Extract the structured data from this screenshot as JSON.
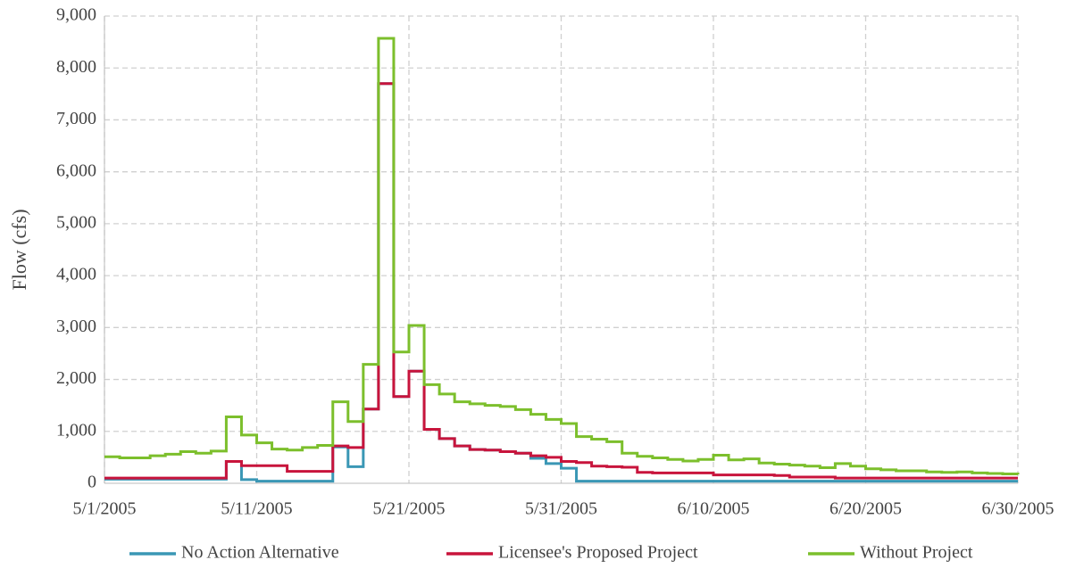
{
  "chart_data": {
    "type": "step",
    "y_label": "Flow (cfs)",
    "x": [
      "5/1/2005",
      "5/2/2005",
      "5/3/2005",
      "5/4/2005",
      "5/5/2005",
      "5/6/2005",
      "5/7/2005",
      "5/8/2005",
      "5/9/2005",
      "5/10/2005",
      "5/11/2005",
      "5/12/2005",
      "5/13/2005",
      "5/14/2005",
      "5/15/2005",
      "5/16/2005",
      "5/17/2005",
      "5/18/2005",
      "5/19/2005",
      "5/20/2005",
      "5/21/2005",
      "5/22/2005",
      "5/23/2005",
      "5/24/2005",
      "5/25/2005",
      "5/26/2005",
      "5/27/2005",
      "5/28/2005",
      "5/29/2005",
      "5/30/2005",
      "5/31/2005",
      "6/1/2005",
      "6/2/2005",
      "6/3/2005",
      "6/4/2005",
      "6/5/2005",
      "6/6/2005",
      "6/7/2005",
      "6/8/2005",
      "6/9/2005",
      "6/10/2005",
      "6/11/2005",
      "6/12/2005",
      "6/13/2005",
      "6/14/2005",
      "6/15/2005",
      "6/16/2005",
      "6/17/2005",
      "6/18/2005",
      "6/19/2005",
      "6/20/2005",
      "6/21/2005",
      "6/22/2005",
      "6/23/2005",
      "6/24/2005",
      "6/25/2005",
      "6/26/2005",
      "6/27/2005",
      "6/28/2005",
      "6/29/2005",
      "6/30/2005"
    ],
    "series": [
      {
        "name": "No Action Alternative",
        "color": "#3a97b5",
        "values": [
          80,
          80,
          80,
          80,
          80,
          80,
          80,
          80,
          420,
          70,
          40,
          40,
          40,
          40,
          40,
          700,
          320,
          1430,
          7700,
          1670,
          2160,
          1040,
          860,
          720,
          650,
          640,
          610,
          580,
          480,
          380,
          290,
          40,
          40,
          40,
          40,
          40,
          40,
          40,
          40,
          40,
          40,
          40,
          40,
          40,
          40,
          40,
          40,
          40,
          40,
          40,
          40,
          40,
          40,
          40,
          40,
          40,
          40,
          40,
          40,
          40,
          40
        ]
      },
      {
        "name": "Licensee's Proposed Project",
        "color": "#c8143c",
        "values": [
          100,
          100,
          100,
          100,
          100,
          100,
          100,
          100,
          420,
          340,
          340,
          340,
          230,
          230,
          230,
          720,
          690,
          1430,
          7700,
          1670,
          2160,
          1040,
          860,
          720,
          650,
          640,
          610,
          580,
          530,
          500,
          420,
          400,
          330,
          320,
          310,
          210,
          200,
          200,
          200,
          200,
          160,
          160,
          160,
          160,
          150,
          120,
          120,
          120,
          100,
          100,
          100,
          100,
          100,
          100,
          100,
          100,
          100,
          100,
          100,
          100,
          100
        ]
      },
      {
        "name": "Without Project",
        "color": "#7cbf2c",
        "values": [
          510,
          490,
          490,
          530,
          560,
          610,
          580,
          620,
          1280,
          930,
          780,
          660,
          640,
          690,
          730,
          1570,
          1190,
          2290,
          8570,
          2530,
          3040,
          1900,
          1720,
          1570,
          1530,
          1500,
          1480,
          1420,
          1330,
          1230,
          1150,
          900,
          850,
          800,
          580,
          520,
          490,
          460,
          430,
          460,
          540,
          450,
          470,
          390,
          370,
          350,
          330,
          300,
          380,
          330,
          280,
          260,
          240,
          240,
          220,
          210,
          220,
          200,
          190,
          180,
          170
        ]
      }
    ],
    "xlim": [
      "5/1/2005",
      "6/30/2005"
    ],
    "xticks": [
      "5/1/2005",
      "5/11/2005",
      "5/21/2005",
      "5/31/2005",
      "6/10/2005",
      "6/20/2005",
      "6/30/2005"
    ],
    "ylim": [
      0,
      9000
    ],
    "yticks": [
      0,
      {
        "value": 1000,
        "label": "1,000"
      },
      {
        "value": 2000,
        "label": "2,000"
      },
      {
        "value": 3000,
        "label": "3,000"
      },
      {
        "value": 4000,
        "label": "4,000"
      },
      {
        "value": 5000,
        "label": "5,000"
      },
      {
        "value": 6000,
        "label": "6,000"
      },
      {
        "value": 7000,
        "label": "7,000"
      },
      {
        "value": 8000,
        "label": "8,000"
      },
      {
        "value": 9000,
        "label": "9,000"
      }
    ],
    "grid": true,
    "legend": "bottom"
  }
}
